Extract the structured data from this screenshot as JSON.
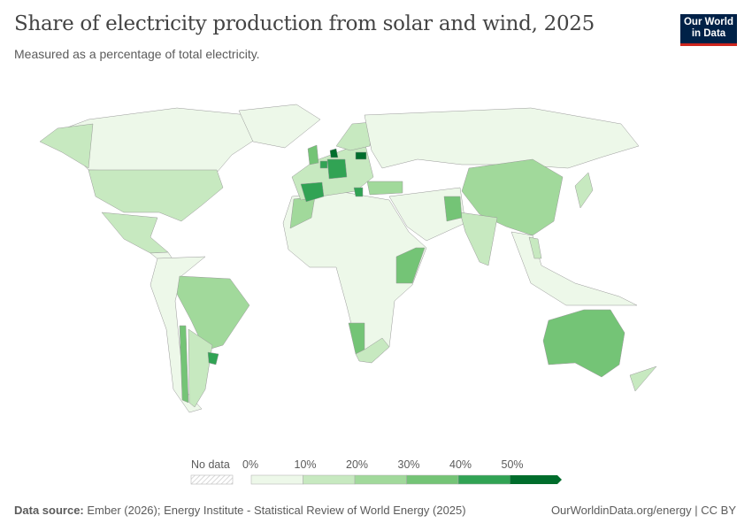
{
  "header": {
    "title": "Share of electricity production from solar and wind, 2025",
    "subtitle": "Measured as a percentage of total electricity.",
    "logo_line1": "Our World",
    "logo_line2": "in Data"
  },
  "chart_data": {
    "type": "choropleth-map",
    "title": "Share of electricity production from solar and wind, 2025",
    "subtitle": "Measured as a percentage of total electricity.",
    "unit": "%",
    "legend": {
      "no_data_label": "No data",
      "bins": [
        "0%",
        "10%",
        "20%",
        "30%",
        "40%",
        "50%"
      ],
      "colors": [
        "#edf8e9",
        "#c7e9c0",
        "#a1d99b",
        "#74c476",
        "#31a354",
        "#006d2c"
      ],
      "no_data_pattern": "hatched-gray",
      "placement": "bottom-center"
    },
    "regions": [
      {
        "name": "Canada",
        "bin": 0
      },
      {
        "name": "Greenland",
        "bin": 0
      },
      {
        "name": "Alaska (USA)",
        "bin": 1
      },
      {
        "name": "United States",
        "bin": 1
      },
      {
        "name": "Mexico",
        "bin": 1
      },
      {
        "name": "Central America",
        "bin": 0
      },
      {
        "name": "South America (other)",
        "bin": 0
      },
      {
        "name": "Brazil",
        "bin": 2
      },
      {
        "name": "Chile",
        "bin": 3
      },
      {
        "name": "Argentina",
        "bin": 1
      },
      {
        "name": "Uruguay",
        "bin": 4
      },
      {
        "name": "Africa (other)",
        "bin": 0
      },
      {
        "name": "Morocco",
        "bin": 2
      },
      {
        "name": "Namibia",
        "bin": 3
      },
      {
        "name": "South Africa",
        "bin": 1
      },
      {
        "name": "Kenya / Somalia",
        "bin": 3
      },
      {
        "name": "Europe (other)",
        "bin": 1
      },
      {
        "name": "Spain / Portugal",
        "bin": 4
      },
      {
        "name": "Germany",
        "bin": 4
      },
      {
        "name": "Denmark",
        "bin": 5
      },
      {
        "name": "Netherlands",
        "bin": 4
      },
      {
        "name": "United Kingdom",
        "bin": 3
      },
      {
        "name": "Lithuania",
        "bin": 5
      },
      {
        "name": "Scandinavia",
        "bin": 1
      },
      {
        "name": "Greece",
        "bin": 4
      },
      {
        "name": "Russia",
        "bin": 0
      },
      {
        "name": "Middle East",
        "bin": 0
      },
      {
        "name": "Turkey",
        "bin": 2
      },
      {
        "name": "China",
        "bin": 2
      },
      {
        "name": "India",
        "bin": 1
      },
      {
        "name": "Pakistan",
        "bin": 3
      },
      {
        "name": "Southeast Asia",
        "bin": 0
      },
      {
        "name": "Vietnam",
        "bin": 1
      },
      {
        "name": "Japan",
        "bin": 1
      },
      {
        "name": "Australia",
        "bin": 3
      },
      {
        "name": "New Zealand",
        "bin": 1
      }
    ]
  },
  "footer": {
    "source_label": "Data source:",
    "source_text": "Ember (2026); Energy Institute - Statistical Review of World Energy (2025)",
    "credit": "OurWorldinData.org/energy | CC BY"
  }
}
